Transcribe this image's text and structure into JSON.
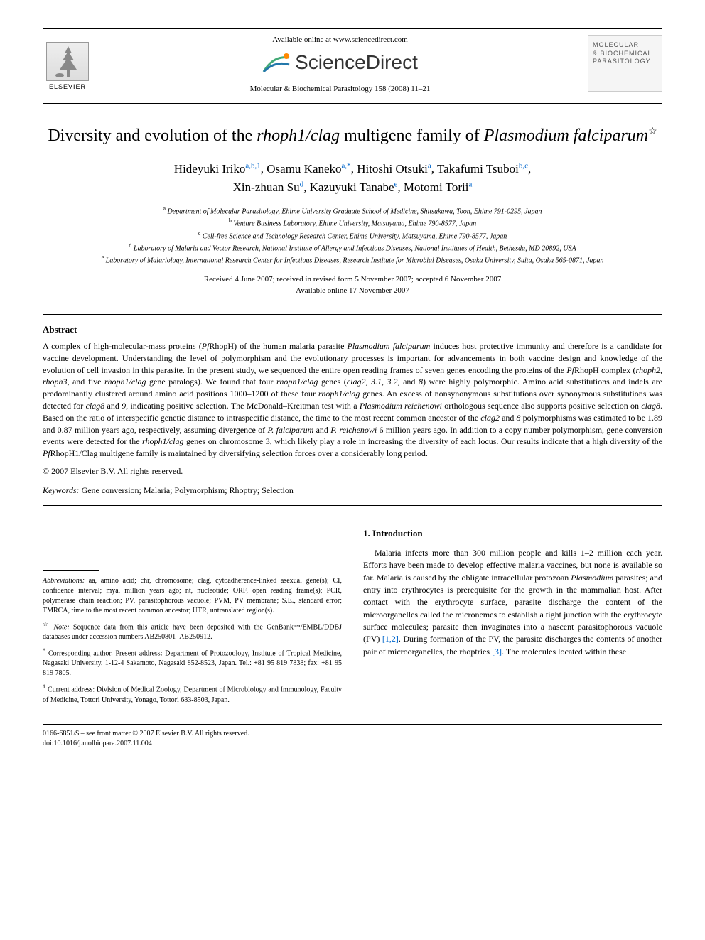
{
  "header": {
    "elsevier": "ELSEVIER",
    "available_online": "Available online at www.sciencedirect.com",
    "sciencedirect": "ScienceDirect",
    "citation": "Molecular & Biochemical Parasitology 158 (2008) 11–21",
    "cover_line1": "MOLECULAR",
    "cover_line2": "& BIOCHEMICAL",
    "cover_line3": "PARASITOLOGY"
  },
  "title": {
    "pre": "Diversity and evolution of the ",
    "italic1": "rhoph1/clag",
    "mid": " multigene family of ",
    "italic2": "Plasmodium falciparum",
    "star": "☆"
  },
  "authors": {
    "a1_name": "Hideyuki Iriko",
    "a1_sup": "a,b,1",
    "a2_name": "Osamu Kaneko",
    "a2_sup": "a,*",
    "a3_name": "Hitoshi Otsuki",
    "a3_sup": "a",
    "a4_name": "Takafumi Tsuboi",
    "a4_sup": "b,c",
    "a5_name": "Xin-zhuan Su",
    "a5_sup": "d",
    "a6_name": "Kazuyuki Tanabe",
    "a6_sup": "e",
    "a7_name": "Motomi Torii",
    "a7_sup": "a"
  },
  "affiliations": {
    "a": "Department of Molecular Parasitology, Ehime University Graduate School of Medicine, Shitsukawa, Toon, Ehime 791-0295, Japan",
    "b": "Venture Business Laboratory, Ehime University, Matsuyama, Ehime 790-8577, Japan",
    "c": "Cell-free Science and Technology Research Center, Ehime University, Matsuyama, Ehime 790-8577, Japan",
    "d": "Laboratory of Malaria and Vector Research, National Institute of Allergy and Infectious Diseases, National Institutes of Health, Bethesda, MD 20892, USA",
    "e": "Laboratory of Malariology, International Research Center for Infectious Diseases, Research Institute for Microbial Diseases, Osaka University, Suita, Osaka 565-0871, Japan"
  },
  "dates": {
    "received": "Received 4 June 2007; received in revised form 5 November 2007; accepted 6 November 2007",
    "online": "Available online 17 November 2007"
  },
  "abstract": {
    "heading": "Abstract",
    "text_parts": [
      {
        "t": "A complex of high-molecular-mass proteins (",
        "i": false
      },
      {
        "t": "Pf",
        "i": true
      },
      {
        "t": "RhopH) of the human malaria parasite ",
        "i": false
      },
      {
        "t": "Plasmodium falciparum",
        "i": true
      },
      {
        "t": " induces host protective immunity and therefore is a candidate for vaccine development. Understanding the level of polymorphism and the evolutionary processes is important for advancements in both vaccine design and knowledge of the evolution of cell invasion in this parasite. In the present study, we sequenced the entire open reading frames of seven genes encoding the proteins of the ",
        "i": false
      },
      {
        "t": "Pf",
        "i": true
      },
      {
        "t": "RhopH complex (",
        "i": false
      },
      {
        "t": "rhoph2",
        "i": true
      },
      {
        "t": ", ",
        "i": false
      },
      {
        "t": "rhoph3",
        "i": true
      },
      {
        "t": ", and five ",
        "i": false
      },
      {
        "t": "rhoph1/clag",
        "i": true
      },
      {
        "t": " gene paralogs). We found that four ",
        "i": false
      },
      {
        "t": "rhoph1/clag",
        "i": true
      },
      {
        "t": " genes (",
        "i": false
      },
      {
        "t": "clag2",
        "i": true
      },
      {
        "t": ", ",
        "i": false
      },
      {
        "t": "3.1",
        "i": true
      },
      {
        "t": ", ",
        "i": false
      },
      {
        "t": "3.2",
        "i": true
      },
      {
        "t": ", and ",
        "i": false
      },
      {
        "t": "8",
        "i": true
      },
      {
        "t": ") were highly polymorphic. Amino acid substitutions and indels are predominantly clustered around amino acid positions 1000–1200 of these four ",
        "i": false
      },
      {
        "t": "rhoph1/clag",
        "i": true
      },
      {
        "t": " genes. An excess of nonsynonymous substitutions over synonymous substitutions was detected for ",
        "i": false
      },
      {
        "t": "clag8",
        "i": true
      },
      {
        "t": " and ",
        "i": false
      },
      {
        "t": "9",
        "i": true
      },
      {
        "t": ", indicating positive selection. The McDonald–Kreitman test with a ",
        "i": false
      },
      {
        "t": "Plasmodium reichenowi",
        "i": true
      },
      {
        "t": " orthologous sequence also supports positive selection on ",
        "i": false
      },
      {
        "t": "clag8",
        "i": true
      },
      {
        "t": ". Based on the ratio of interspecific genetic distance to intraspecific distance, the time to the most recent common ancestor of the ",
        "i": false
      },
      {
        "t": "clag2",
        "i": true
      },
      {
        "t": " and ",
        "i": false
      },
      {
        "t": "8",
        "i": true
      },
      {
        "t": " polymorphisms was estimated to be 1.89 and 0.87 million years ago, respectively, assuming divergence of ",
        "i": false
      },
      {
        "t": "P. falciparum",
        "i": true
      },
      {
        "t": " and ",
        "i": false
      },
      {
        "t": "P. reichenowi",
        "i": true
      },
      {
        "t": " 6 million years ago. In addition to a copy number polymorphism, gene conversion events were detected for the ",
        "i": false
      },
      {
        "t": "rhoph1/clag",
        "i": true
      },
      {
        "t": " genes on chromosome 3, which likely play a role in increasing the diversity of each locus. Our results indicate that a high diversity of the ",
        "i": false
      },
      {
        "t": "Pf",
        "i": true
      },
      {
        "t": "RhopH1/Clag multigene family is maintained by diversifying selection forces over a considerably long period.",
        "i": false
      }
    ],
    "copyright": "© 2007 Elsevier B.V. All rights reserved.",
    "keywords_label": "Keywords:",
    "keywords": " Gene conversion; Malaria; Polymorphism; Rhoptry; Selection"
  },
  "footnotes": {
    "abbrev_label": "Abbreviations:",
    "abbrev_text": " aa, amino acid; chr, chromosome; clag, cytoadherence-linked asexual gene(s); CI, confidence interval; mya, million years ago; nt, nucleotide; ORF, open reading frame(s); PCR, polymerase chain reaction; PV, parasitophorous vacuole; PVM, PV membrane; S.E., standard error; TMRCA, time to the most recent common ancestor; UTR, untranslated region(s).",
    "note_star": "☆",
    "note_label": "Note:",
    "note_text": " Sequence data from this article have been deposited with the GenBank™/EMBL/DDBJ databases under accession numbers AB250801–AB250912.",
    "corr_star": "*",
    "corr_text": " Corresponding author. Present address: Department of Protozoology, Institute of Tropical Medicine, Nagasaki University, 1-12-4 Sakamoto, Nagasaki 852-8523, Japan. Tel.: +81 95 819 7838; fax: +81 95 819 7805.",
    "addr1_sup": "1",
    "addr1_text": " Current address: Division of Medical Zoology, Department of Microbiology and Immunology, Faculty of Medicine, Tottori University, Yonago, Tottori 683-8503, Japan."
  },
  "intro": {
    "heading": "1. Introduction",
    "text_parts": [
      {
        "t": "Malaria infects more than 300 million people and kills 1–2 million each year. Efforts have been made to develop effective malaria vaccines, but none is available so far. Malaria is caused by the obligate intracellular protozoan ",
        "i": false
      },
      {
        "t": "Plasmodium",
        "i": true
      },
      {
        "t": " parasites; and entry into erythrocytes is prerequisite for the growth in the mammalian host. After contact with the erythrocyte surface, parasite discharge the content of the microorganelles called the micronemes to establish a tight junction with the erythrocyte surface molecules; parasite then invaginates into a nascent parasitophorous vacuole (PV) ",
        "i": false
      },
      {
        "t": "[1,2]",
        "i": false,
        "ref": true
      },
      {
        "t": ". During formation of the PV, the parasite discharges the contents of another pair of microorganelles, the rhoptries ",
        "i": false
      },
      {
        "t": "[3]",
        "i": false,
        "ref": true
      },
      {
        "t": ". The molecules located within these",
        "i": false
      }
    ]
  },
  "footer": {
    "line1": "0166-6851/$ – see front matter © 2007 Elsevier B.V. All rights reserved.",
    "line2": "doi:10.1016/j.molbiopara.2007.11.004"
  }
}
